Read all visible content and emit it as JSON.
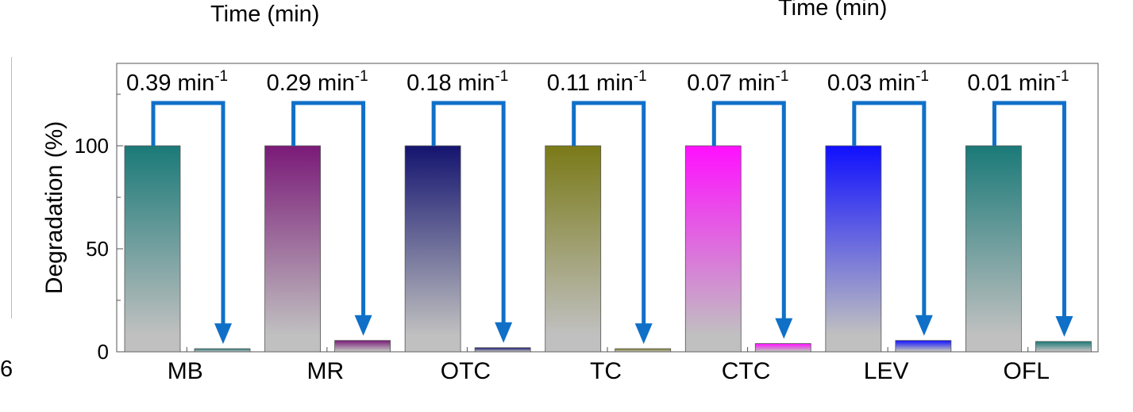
{
  "fragments": {
    "title_left": "Time (min)",
    "title_right": "Time (min)",
    "left_label": "6"
  },
  "chart_data": {
    "type": "bar",
    "categories": [
      "MB",
      "MR",
      "OTC",
      "TC",
      "CTC",
      "LEV",
      "OFL"
    ],
    "series": [
      {
        "values": [
          100,
          100,
          100,
          100,
          100,
          100,
          100
        ]
      },
      {
        "values": [
          1.5,
          5.5,
          2.0,
          1.5,
          4.0,
          5.5,
          5.0
        ]
      }
    ],
    "rate_constants": [
      "0.39 min",
      "0.29 min",
      "0.18 min",
      "0.11 min",
      "0.07 min",
      "0.03 min",
      "0.01 min"
    ],
    "rate_unit_exponent": "-1",
    "bar_colors": [
      "#1a7a78",
      "#7a1a78",
      "#141470",
      "#7a7a18",
      "#ff10ff",
      "#1010ff",
      "#1a7a78"
    ],
    "bar_fade_color": "#c0c0c0",
    "arrow_color": "#1070c8",
    "ylabel": "Degradation (%)",
    "yticks": [
      0,
      50,
      100
    ],
    "ylim": [
      0,
      140
    ],
    "grid": false,
    "legend": "none"
  }
}
